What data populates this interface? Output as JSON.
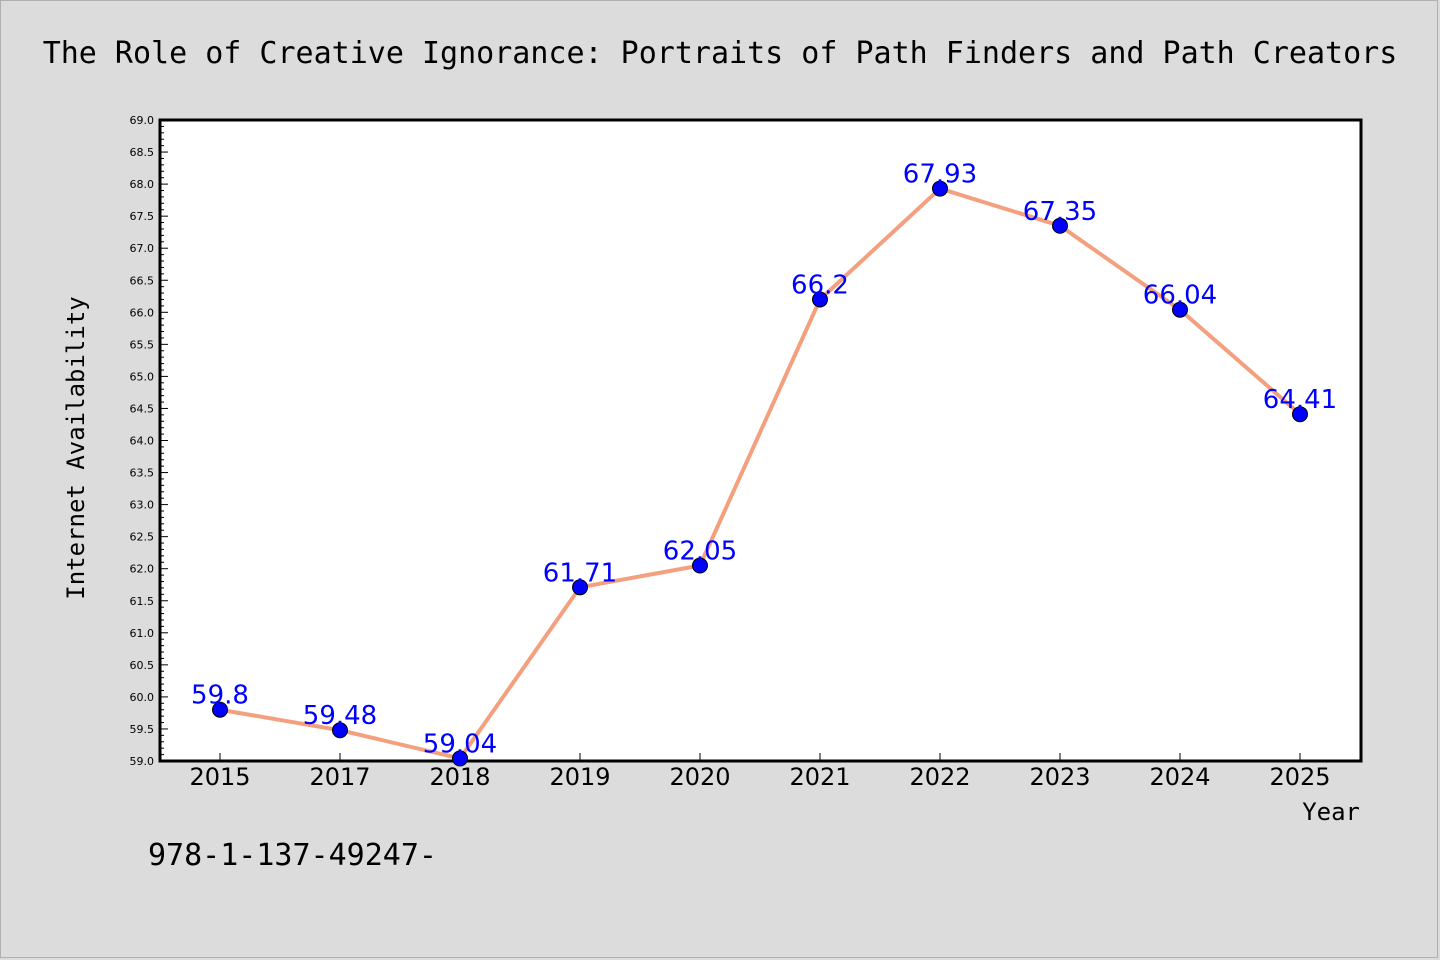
{
  "chart_data": {
    "type": "line",
    "title": "The Role of Creative Ignorance: Portraits of Path Finders and Path Creators",
    "xlabel": "Year",
    "ylabel": "Internet Availability",
    "categories": [
      "2015",
      "2017",
      "2018",
      "2019",
      "2020",
      "2021",
      "2022",
      "2023",
      "2024",
      "2025"
    ],
    "series": [
      {
        "values": [
          59.8,
          59.48,
          59.04,
          61.71,
          62.05,
          66.2,
          67.93,
          67.35,
          66.04,
          64.41
        ]
      }
    ],
    "data_labels": [
      "59.8",
      "59.48",
      "59.04",
      "61.71",
      "62.05",
      "66.2",
      "67.93",
      "67.35",
      "66.04",
      "64.41"
    ],
    "ylim": [
      59.0,
      69.0
    ],
    "ytick_labels": [
      "59.0",
      "59.5",
      "60.0",
      "60.5",
      "61.0",
      "61.5",
      "62.0",
      "62.5",
      "63.0",
      "63.5",
      "64.0",
      "64.5",
      "65.0",
      "65.5",
      "66.0",
      "66.5",
      "67.0",
      "67.5",
      "68.0",
      "68.5",
      "69.0"
    ],
    "grid": false,
    "line_color": "#f4a07f",
    "marker_color": "#0000ff",
    "label_color": "#0000ff"
  },
  "footer": {
    "isbn": "978-1-137-49247-"
  },
  "colors": {
    "background": "#dcdcdc",
    "plot_background": "#ffffff"
  }
}
